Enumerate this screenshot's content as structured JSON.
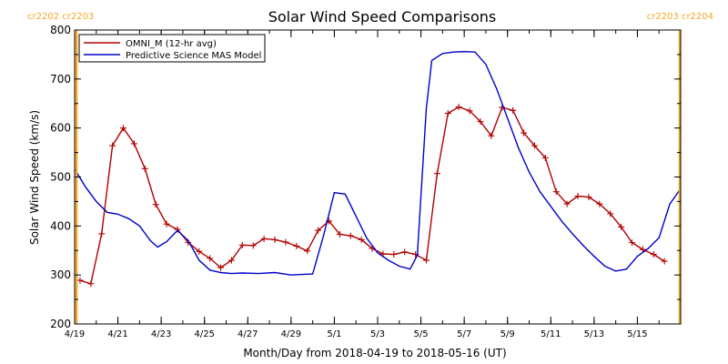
{
  "chart_data": {
    "type": "line",
    "title": "Solar Wind Speed Comparisons",
    "xlabel": "Month/Day from 2018-04-19 to 2018-05-16 (UT)",
    "ylabel": "Solar Wind Speed (km/s)",
    "xlim": [
      "2018-04-19",
      "2018-05-17"
    ],
    "ylim": [
      200,
      800
    ],
    "x_ticks": [
      "4/19",
      "4/21",
      "4/23",
      "4/25",
      "4/27",
      "4/29",
      "5/1",
      "5/3",
      "5/5",
      "5/7",
      "5/9",
      "5/11",
      "5/13",
      "5/15"
    ],
    "x_tick_dates": [
      "2018-04-19",
      "2018-04-21",
      "2018-04-23",
      "2018-04-25",
      "2018-04-27",
      "2018-04-29",
      "2018-05-01",
      "2018-05-03",
      "2018-05-05",
      "2018-05-07",
      "2018-05-09",
      "2018-05-11",
      "2018-05-13",
      "2018-05-15"
    ],
    "y_ticks": [
      200,
      300,
      400,
      500,
      600,
      700,
      800
    ],
    "grid": false,
    "legend_position": "top-left",
    "rotation_labels": {
      "left": "cr2202 cr2203",
      "right": "cr2203 cr2204",
      "left_marker_date": "2018-04-19T02:00",
      "right_marker_date": "2018-05-17T00:00",
      "color": "#f5a623"
    },
    "series": [
      {
        "name": "OMNI_M (12-hr avg)",
        "color": "#b00000",
        "marker": "+",
        "points": [
          [
            "2018-04-19T06:00",
            289
          ],
          [
            "2018-04-19T18:00",
            282
          ],
          [
            "2018-04-20T06:00",
            384
          ],
          [
            "2018-04-20T18:00",
            564
          ],
          [
            "2018-04-21T06:00",
            600
          ],
          [
            "2018-04-21T18:00",
            568
          ],
          [
            "2018-04-22T06:00",
            517
          ],
          [
            "2018-04-22T18:00",
            444
          ],
          [
            "2018-04-23T06:00",
            404
          ],
          [
            "2018-04-23T18:00",
            393
          ],
          [
            "2018-04-24T06:00",
            366
          ],
          [
            "2018-04-24T18:00",
            348
          ],
          [
            "2018-04-25T06:00",
            334
          ],
          [
            "2018-04-25T18:00",
            315
          ],
          [
            "2018-04-26T06:00",
            330
          ],
          [
            "2018-04-26T18:00",
            361
          ],
          [
            "2018-04-27T06:00",
            360
          ],
          [
            "2018-04-27T18:00",
            374
          ],
          [
            "2018-04-28T06:00",
            372
          ],
          [
            "2018-04-28T18:00",
            367
          ],
          [
            "2018-04-29T06:00",
            359
          ],
          [
            "2018-04-29T18:00",
            349
          ],
          [
            "2018-04-30T06:00",
            391
          ],
          [
            "2018-04-30T18:00",
            410
          ],
          [
            "2018-05-01T06:00",
            383
          ],
          [
            "2018-05-01T18:00",
            380
          ],
          [
            "2018-05-02T06:00",
            372
          ],
          [
            "2018-05-02T18:00",
            354
          ],
          [
            "2018-05-03T06:00",
            343
          ],
          [
            "2018-05-03T18:00",
            342
          ],
          [
            "2018-05-04T06:00",
            347
          ],
          [
            "2018-05-04T18:00",
            342
          ],
          [
            "2018-05-05T06:00",
            330
          ],
          [
            "2018-05-05T18:00",
            507
          ],
          [
            "2018-05-06T06:00",
            630
          ],
          [
            "2018-05-06T18:00",
            643
          ],
          [
            "2018-05-07T06:00",
            635
          ],
          [
            "2018-05-07T18:00",
            613
          ],
          [
            "2018-05-08T06:00",
            584
          ],
          [
            "2018-05-08T18:00",
            642
          ],
          [
            "2018-05-09T06:00",
            636
          ],
          [
            "2018-05-09T18:00",
            590
          ],
          [
            "2018-05-10T06:00",
            564
          ],
          [
            "2018-05-10T18:00",
            539
          ],
          [
            "2018-05-11T06:00",
            470
          ],
          [
            "2018-05-11T18:00",
            445
          ],
          [
            "2018-05-12T06:00",
            461
          ],
          [
            "2018-05-12T18:00",
            459
          ],
          [
            "2018-05-13T06:00",
            445
          ],
          [
            "2018-05-13T18:00",
            425
          ],
          [
            "2018-05-14T06:00",
            398
          ],
          [
            "2018-05-14T18:00",
            366
          ],
          [
            "2018-05-15T06:00",
            352
          ],
          [
            "2018-05-15T18:00",
            342
          ],
          [
            "2018-05-16T06:00",
            328
          ]
        ]
      },
      {
        "name": "Predictive Science MAS Model",
        "color": "#0000cc",
        "marker": "",
        "points": [
          [
            "2018-04-19T00:00",
            516
          ],
          [
            "2018-04-19T12:00",
            480
          ],
          [
            "2018-04-20T00:00",
            450
          ],
          [
            "2018-04-20T12:00",
            428
          ],
          [
            "2018-04-21T00:00",
            424
          ],
          [
            "2018-04-21T12:00",
            415
          ],
          [
            "2018-04-22T00:00",
            400
          ],
          [
            "2018-04-22T12:00",
            370
          ],
          [
            "2018-04-22T20:00",
            357
          ],
          [
            "2018-04-23T06:00",
            368
          ],
          [
            "2018-04-23T18:00",
            391
          ],
          [
            "2018-04-24T06:00",
            370
          ],
          [
            "2018-04-24T18:00",
            330
          ],
          [
            "2018-04-25T06:00",
            310
          ],
          [
            "2018-04-25T18:00",
            305
          ],
          [
            "2018-04-26T06:00",
            303
          ],
          [
            "2018-04-26T18:00",
            304
          ],
          [
            "2018-04-27T12:00",
            303
          ],
          [
            "2018-04-28T06:00",
            305
          ],
          [
            "2018-04-29T00:00",
            300
          ],
          [
            "2018-04-29T12:00",
            301
          ],
          [
            "2018-04-30T00:00",
            302
          ],
          [
            "2018-04-30T12:00",
            380
          ],
          [
            "2018-05-01T00:00",
            468
          ],
          [
            "2018-05-01T12:00",
            465
          ],
          [
            "2018-05-02T00:00",
            420
          ],
          [
            "2018-05-02T12:00",
            375
          ],
          [
            "2018-05-03T00:00",
            345
          ],
          [
            "2018-05-03T12:00",
            330
          ],
          [
            "2018-05-04T00:00",
            318
          ],
          [
            "2018-05-04T12:00",
            312
          ],
          [
            "2018-05-04T20:00",
            340
          ],
          [
            "2018-05-05T06:00",
            640
          ],
          [
            "2018-05-05T12:00",
            738
          ],
          [
            "2018-05-06T00:00",
            752
          ],
          [
            "2018-05-06T12:00",
            755
          ],
          [
            "2018-05-07T00:00",
            756
          ],
          [
            "2018-05-07T12:00",
            755
          ],
          [
            "2018-05-08T00:00",
            730
          ],
          [
            "2018-05-08T12:00",
            680
          ],
          [
            "2018-05-09T00:00",
            620
          ],
          [
            "2018-05-09T12:00",
            560
          ],
          [
            "2018-05-10T00:00",
            510
          ],
          [
            "2018-05-10T12:00",
            470
          ],
          [
            "2018-05-11T00:00",
            440
          ],
          [
            "2018-05-11T12:00",
            410
          ],
          [
            "2018-05-12T00:00",
            384
          ],
          [
            "2018-05-12T12:00",
            360
          ],
          [
            "2018-05-13T00:00",
            338
          ],
          [
            "2018-05-13T12:00",
            318
          ],
          [
            "2018-05-14T00:00",
            308
          ],
          [
            "2018-05-14T12:00",
            312
          ],
          [
            "2018-05-15T00:00",
            338
          ],
          [
            "2018-05-15T12:00",
            354
          ],
          [
            "2018-05-16T00:00",
            376
          ],
          [
            "2018-05-16T12:00",
            445
          ],
          [
            "2018-05-17T00:00",
            476
          ]
        ]
      }
    ]
  }
}
